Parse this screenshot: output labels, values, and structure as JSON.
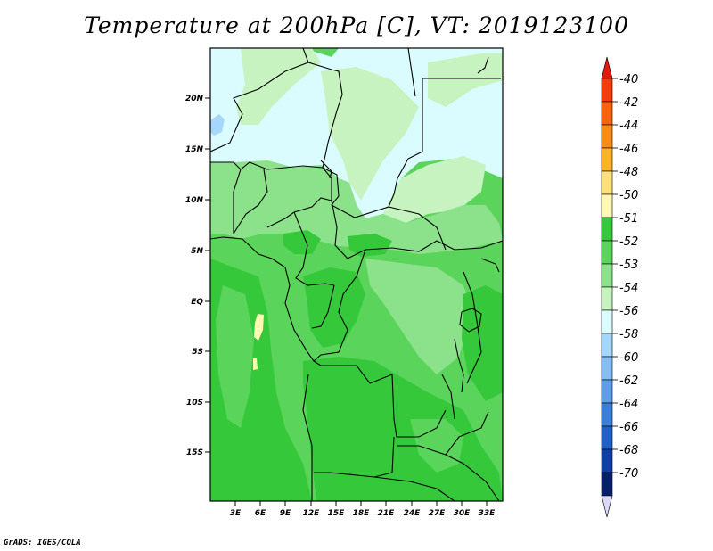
{
  "title": "Temperature at 200hPa [C], VT: 2019123100",
  "credit": "GrADS: IGES/COLA",
  "map": {
    "lat_labels": [
      "20N",
      "15N",
      "10N",
      "5N",
      "EQ",
      "5S",
      "10S",
      "15S"
    ],
    "lon_labels": [
      "3E",
      "6E",
      "9E",
      "12E",
      "15E",
      "18E",
      "21E",
      "24E",
      "27E",
      "30E",
      "33E"
    ]
  },
  "colorbar": {
    "levels": [
      "-40",
      "-42",
      "-44",
      "-46",
      "-48",
      "-50",
      "-51",
      "-52",
      "-53",
      "-54",
      "-56",
      "-58",
      "-60",
      "-62",
      "-64",
      "-66",
      "-68",
      "-70"
    ],
    "colors": {
      "top_arrow": "#e8170e",
      "swatches": [
        "#f23d0c",
        "#f56411",
        "#f88c18",
        "#fbb22a",
        "#fde07a",
        "#fff8b4",
        "#36c83b",
        "#5ad45a",
        "#8ce28a",
        "#c7f3c0",
        "#dbfcff",
        "#a5d7fd",
        "#84bdf5",
        "#5d9ee6",
        "#3a7fd6",
        "#2060c7",
        "#0f3fa6",
        "#07206b"
      ],
      "bottom_arrow": "#dbd7f7"
    }
  },
  "field_colors": {
    "c51": "#fff8b4",
    "c52": "#36c83b",
    "c53": "#5ad45a",
    "c54": "#8ce28a",
    "c55": "#c7f3c0",
    "c56": "#dbfcff",
    "c58": "#a5d7fd"
  }
}
